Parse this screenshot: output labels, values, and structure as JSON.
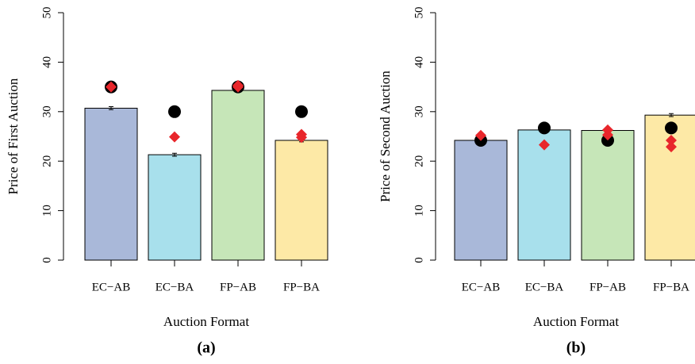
{
  "chart_data": [
    {
      "type": "bar",
      "title": "(a)",
      "xlabel": "Auction Format",
      "ylabel": "Price of First Auction",
      "categories": [
        "EC−AB",
        "EC−BA",
        "FP−AB",
        "FP−BA"
      ],
      "colors": [
        "#a9b8d9",
        "#a8e0ec",
        "#c6e6b8",
        "#fde9a6"
      ],
      "values": [
        30.7,
        21.3,
        34.3,
        24.2
      ],
      "errors": [
        0.3,
        0.3,
        0.3,
        0.3
      ],
      "circle_color": "#000000",
      "circle_values": [
        35,
        30,
        35,
        30
      ],
      "diamond_color": "#e8262b",
      "diamond_series": [
        [
          35,
          24.9,
          35.3,
          25.4
        ],
        [
          null,
          null,
          35.0,
          24.8
        ]
      ],
      "ylim": [
        0,
        50
      ],
      "yticks": [
        0,
        10,
        20,
        30,
        40,
        50
      ]
    },
    {
      "type": "bar",
      "title": "(b)",
      "xlabel": "Auction Format",
      "ylabel": "Price of Second Auction",
      "categories": [
        "EC−AB",
        "EC−BA",
        "FP−AB",
        "FP−BA"
      ],
      "colors": [
        "#a9b8d9",
        "#a8e0ec",
        "#c6e6b8",
        "#fde9a6"
      ],
      "values": [
        24.2,
        26.3,
        26.2,
        29.3
      ],
      "errors": [
        0.3,
        0.3,
        0.3,
        0.3
      ],
      "circle_color": "#000000",
      "circle_values": [
        24.2,
        26.7,
        24.2,
        26.7
      ],
      "diamond_color": "#e8262b",
      "diamond_series": [
        [
          25.2,
          23.3,
          26.3,
          24.2
        ],
        [
          null,
          null,
          25.3,
          22.9
        ]
      ],
      "ylim": [
        0,
        50
      ],
      "yticks": [
        0,
        10,
        20,
        30,
        40,
        50
      ]
    }
  ]
}
